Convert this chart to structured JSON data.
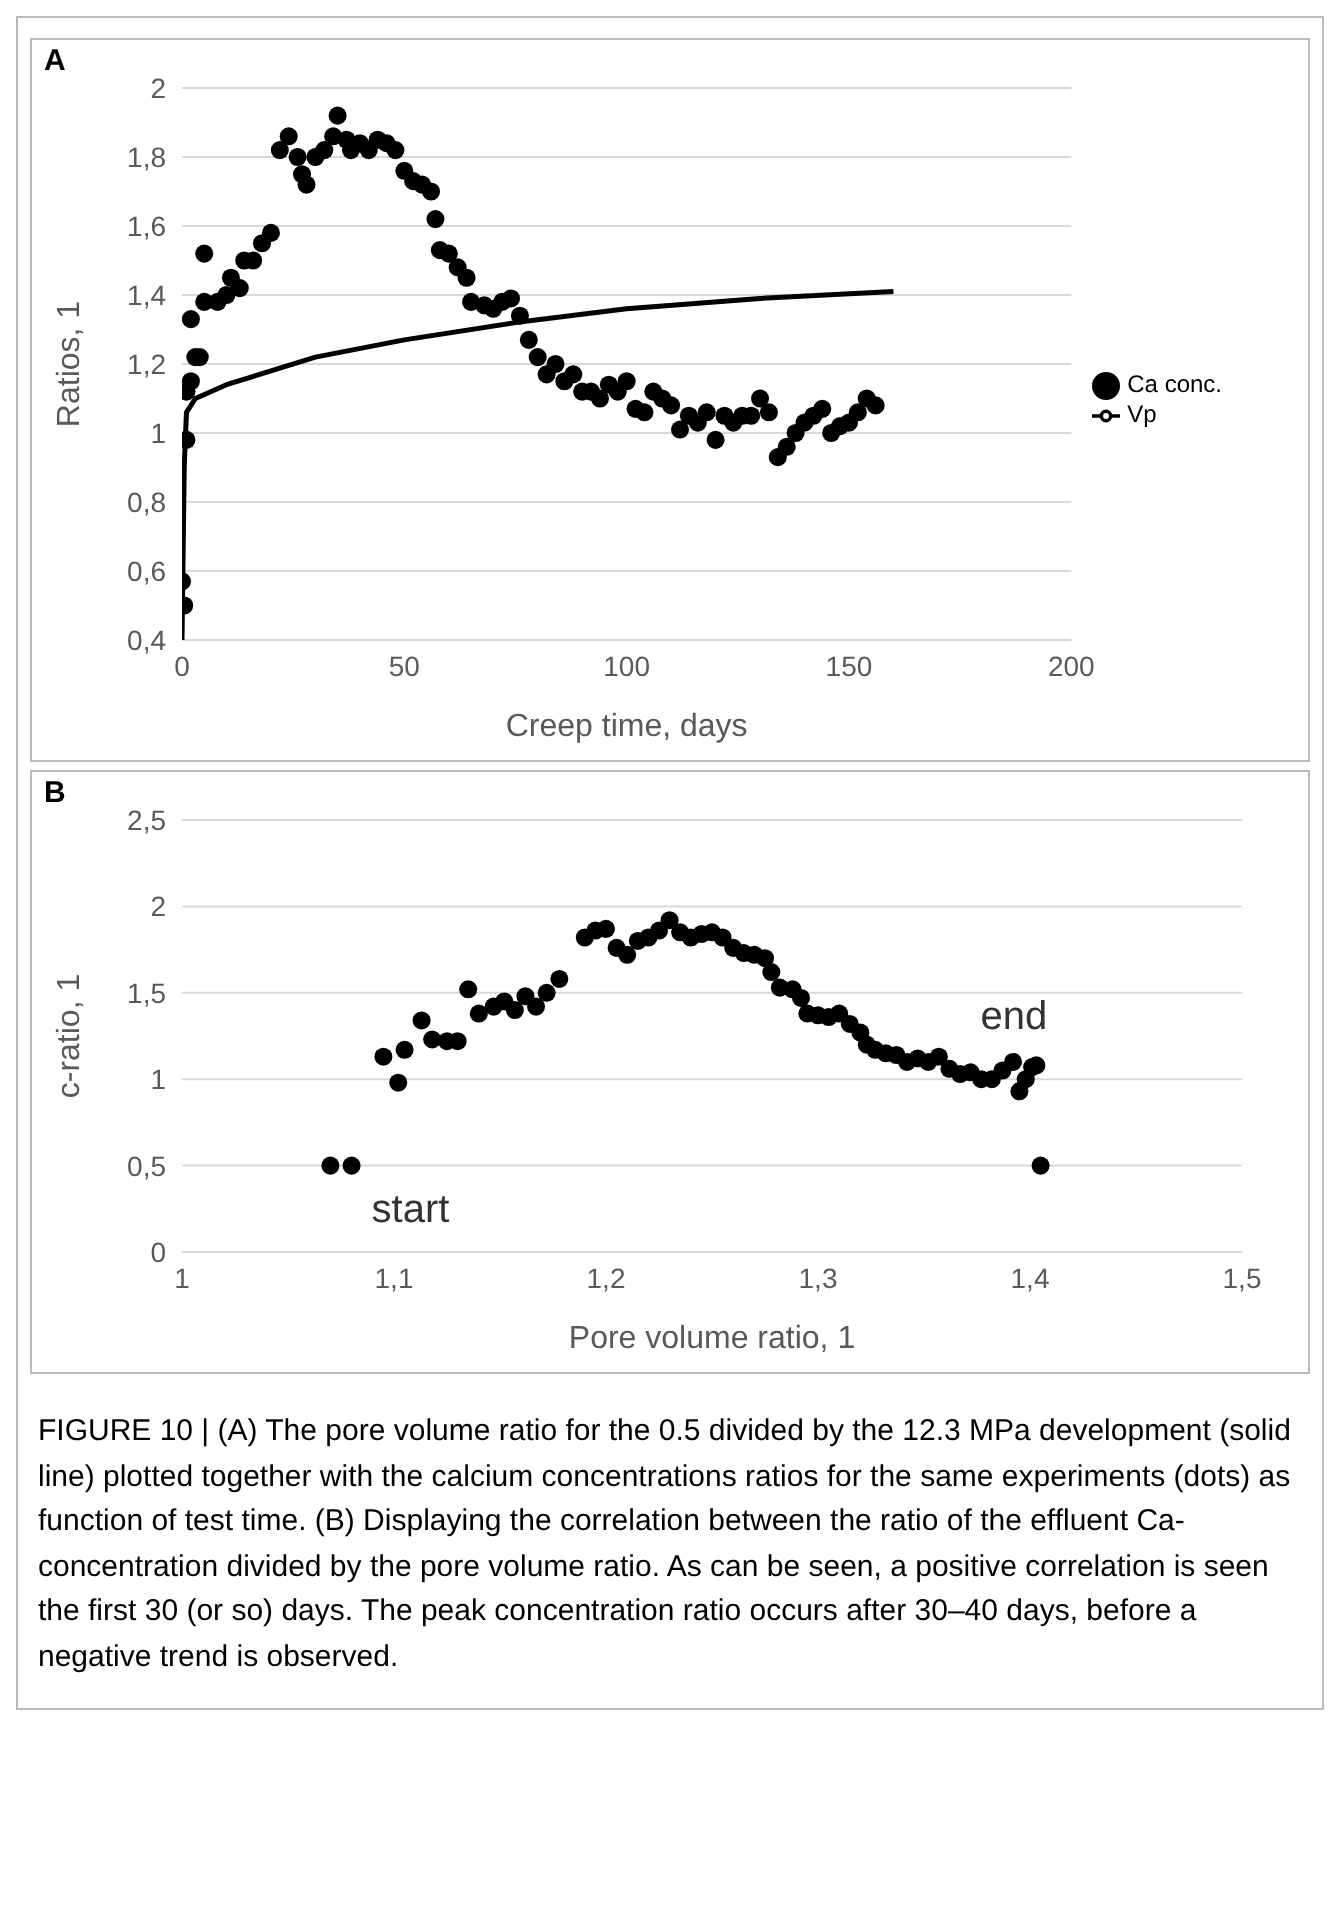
{
  "chart_data": [
    {
      "type": "scatter",
      "title": "A",
      "xlabel": "Creep time, days",
      "ylabel": "Ratios, 1",
      "xlim": [
        0,
        200
      ],
      "xticks": [
        0,
        50,
        100,
        150,
        200
      ],
      "ylim": [
        0.4,
        2
      ],
      "yticks": [
        {
          "value": 0.4,
          "label": "0,4"
        },
        {
          "value": 0.6,
          "label": "0,6"
        },
        {
          "value": 0.8,
          "label": "0,8"
        },
        1,
        {
          "value": 1.2,
          "label": "1,2"
        },
        {
          "value": 1.4,
          "label": "1,4"
        },
        {
          "value": 1.6,
          "label": "1,6"
        },
        {
          "value": 1.8,
          "label": "1,8"
        },
        2
      ],
      "grid": "y",
      "legend": "right",
      "series": [
        {
          "name": "Vp",
          "type": "line",
          "marker": "none",
          "color": "#000000",
          "x": [
            0,
            0.5,
            1,
            3,
            10,
            20,
            30,
            50,
            75,
            100,
            130,
            160
          ],
          "values": [
            0.4,
            0.9,
            1.06,
            1.1,
            1.14,
            1.18,
            1.22,
            1.27,
            1.32,
            1.36,
            1.39,
            1.41
          ]
        },
        {
          "name": "Ca conc.",
          "marker": "circle",
          "color": "#000000",
          "x": [
            0,
            0.5,
            1,
            1,
            2,
            3,
            4,
            2,
            5,
            5,
            8,
            10,
            11,
            13,
            14,
            16,
            18,
            20,
            22,
            24,
            26,
            27,
            28,
            30,
            32,
            34,
            35,
            37,
            38,
            40,
            42,
            44,
            46,
            48,
            50,
            52,
            54,
            56,
            57,
            58,
            60,
            62,
            64,
            65,
            68,
            70,
            72,
            74,
            76,
            78,
            80,
            82,
            84,
            86,
            88,
            90,
            92,
            94,
            96,
            98,
            100,
            102,
            104,
            106,
            108,
            110,
            112,
            114,
            116,
            118,
            120,
            122,
            124,
            126,
            128,
            130,
            132,
            134,
            136,
            138,
            140,
            142,
            144,
            146,
            148,
            150,
            152,
            154,
            156
          ],
          "values": [
            0.57,
            0.5,
            0.98,
            1.12,
            1.15,
            1.22,
            1.22,
            1.33,
            1.38,
            1.52,
            1.38,
            1.4,
            1.45,
            1.42,
            1.5,
            1.5,
            1.55,
            1.58,
            1.82,
            1.86,
            1.8,
            1.75,
            1.72,
            1.8,
            1.82,
            1.86,
            1.92,
            1.85,
            1.82,
            1.84,
            1.82,
            1.85,
            1.84,
            1.82,
            1.76,
            1.73,
            1.72,
            1.7,
            1.62,
            1.53,
            1.52,
            1.48,
            1.45,
            1.38,
            1.37,
            1.36,
            1.38,
            1.39,
            1.34,
            1.27,
            1.22,
            1.17,
            1.2,
            1.15,
            1.17,
            1.12,
            1.12,
            1.1,
            1.14,
            1.12,
            1.15,
            1.07,
            1.06,
            1.12,
            1.1,
            1.08,
            1.01,
            1.05,
            1.03,
            1.06,
            0.98,
            1.05,
            1.03,
            1.05,
            1.05,
            1.1,
            1.06,
            0.93,
            0.96,
            1.0,
            1.03,
            1.05,
            1.07,
            1.0,
            1.02,
            1.03,
            1.06,
            1.1,
            1.08
          ]
        }
      ]
    },
    {
      "type": "scatter",
      "title": "B",
      "xlabel": "Pore volume ratio, 1",
      "ylabel": "c-ratio, 1",
      "xlim": [
        1,
        1.5
      ],
      "xticks": [
        1,
        {
          "value": 1.1,
          "label": "1,1"
        },
        {
          "value": 1.2,
          "label": "1,2"
        },
        {
          "value": 1.3,
          "label": "1,3"
        },
        {
          "value": 1.4,
          "label": "1,4"
        },
        {
          "value": 1.5,
          "label": "1,5"
        }
      ],
      "ylim": [
        0,
        2.5
      ],
      "yticks": [
        0,
        {
          "value": 0.5,
          "label": "0,5"
        },
        1,
        {
          "value": 1.5,
          "label": "1,5"
        },
        2,
        {
          "value": 2.5,
          "label": "2,5"
        }
      ],
      "grid": "y",
      "marker": "circle",
      "series": [
        {
          "color": "#000000",
          "x": [
            1.07,
            1.08,
            1.095,
            1.102,
            1.105,
            1.113,
            1.118,
            1.125,
            1.13,
            1.135,
            1.14,
            1.147,
            1.152,
            1.157,
            1.162,
            1.167,
            1.172,
            1.178,
            1.19,
            1.195,
            1.2,
            1.205,
            1.21,
            1.215,
            1.22,
            1.225,
            1.23,
            1.235,
            1.24,
            1.245,
            1.25,
            1.255,
            1.26,
            1.265,
            1.27,
            1.275,
            1.278,
            1.282,
            1.288,
            1.292,
            1.295,
            1.3,
            1.305,
            1.31,
            1.315,
            1.32,
            1.323,
            1.327,
            1.332,
            1.337,
            1.342,
            1.347,
            1.352,
            1.357,
            1.362,
            1.367,
            1.372,
            1.377,
            1.382,
            1.387,
            1.392,
            1.395,
            1.398,
            1.401,
            1.403,
            1.405
          ],
          "values": [
            0.5,
            0.5,
            1.13,
            0.98,
            1.17,
            1.34,
            1.23,
            1.22,
            1.22,
            1.52,
            1.38,
            1.42,
            1.45,
            1.4,
            1.48,
            1.42,
            1.5,
            1.58,
            1.82,
            1.86,
            1.87,
            1.76,
            1.72,
            1.8,
            1.82,
            1.86,
            1.92,
            1.85,
            1.82,
            1.84,
            1.85,
            1.82,
            1.76,
            1.73,
            1.72,
            1.7,
            1.62,
            1.53,
            1.52,
            1.47,
            1.38,
            1.37,
            1.36,
            1.38,
            1.32,
            1.27,
            1.2,
            1.17,
            1.15,
            1.14,
            1.1,
            1.12,
            1.1,
            1.13,
            1.06,
            1.03,
            1.04,
            1.0,
            1.0,
            1.05,
            1.1,
            0.93,
            1.0,
            1.07,
            1.08,
            0.5
          ]
        }
      ],
      "annotations": [
        {
          "text": "start",
          "x": 1.08,
          "y": 0.5
        },
        {
          "text": "end",
          "x": 1.405,
          "y": 1.08
        },
        "FIGURE 10 | (A) The pore volume ratio for the 0.5 divided by the 12.3 MPa development (solid line) plotted together with the calcium concentrations ratios for the same experiments (dots) as function of test time. (B) Displaying the correlation between the ratio of the effluent Ca-concentration divided by the pore volume ratio. As can be seen, a positive correlation is seen the first 30 (or so) days. The peak concentration ratio occurs after 30–40 days, before a negative trend is observed."
      ]
    }
  ]
}
